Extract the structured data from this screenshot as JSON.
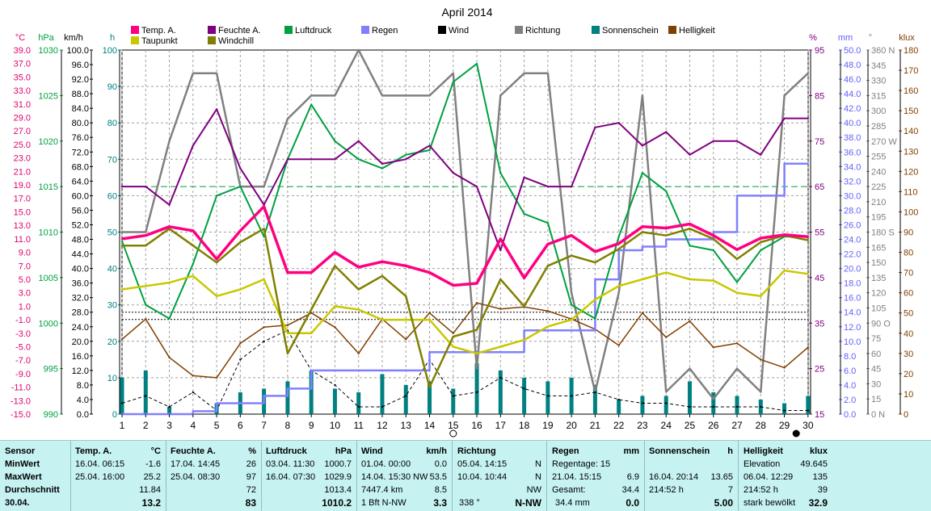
{
  "title": "April 2014",
  "legend": [
    {
      "name": "Temp. A.",
      "color": "#ff0080"
    },
    {
      "name": "Feuchte A.",
      "color": "#800080"
    },
    {
      "name": "Luftdruck",
      "color": "#00a040"
    },
    {
      "name": "Regen",
      "color": "#8080ff"
    },
    {
      "name": "Wind",
      "color": "#000000"
    },
    {
      "name": "Richtung",
      "color": "#808080"
    },
    {
      "name": "Sonnenschein",
      "color": "#008080"
    },
    {
      "name": "Helligkeit",
      "color": "#804000"
    },
    {
      "name": "Taupunkt",
      "color": "#c8c800"
    },
    {
      "name": "Windchill",
      "color": "#808000"
    }
  ],
  "axes": {
    "left_headers": {
      "temp": "°C",
      "pressure": "hPa",
      "wind": "km/h",
      "sun": "h"
    },
    "right_headers": {
      "humidity": "%",
      "rain": "mm",
      "direction": "°",
      "lux": "klux"
    },
    "temp_ticks": [
      "39.0",
      "37.0",
      "35.0",
      "33.0",
      "31.0",
      "29.0",
      "27.0",
      "25.0",
      "23.0",
      "21.0",
      "19.0",
      "17.0",
      "15.0",
      "13.0",
      "11.0",
      "9.0",
      "7.0",
      "5.0",
      "3.0",
      "1.0",
      "-1.0",
      "-3.0",
      "-5.0",
      "-7.0",
      "-9.0",
      "-11.0",
      "-13.0",
      "-15.0"
    ],
    "pressure_ticks": [
      "1030",
      "1025",
      "1020",
      "1015",
      "1010",
      "1005",
      "1000",
      "995",
      "990"
    ],
    "wind_ticks": [
      "100.0",
      "96.0",
      "92.0",
      "88.0",
      "84.0",
      "80.0",
      "76.0",
      "72.0",
      "68.0",
      "64.0",
      "60.0",
      "56.0",
      "52.0",
      "48.0",
      "44.0",
      "40.0",
      "36.0",
      "32.0",
      "28.0",
      "24.0",
      "20.0",
      "16.0",
      "12.0",
      "8.0",
      "4.0",
      "0.0"
    ],
    "sun_ticks": [
      "100",
      "90",
      "80",
      "70",
      "60",
      "50",
      "40",
      "30",
      "20",
      "10",
      "0"
    ],
    "humidity_ticks": [
      "95",
      "85",
      "75",
      "65",
      "55",
      "45",
      "35",
      "25",
      "15"
    ],
    "rain_ticks": [
      "50.0",
      "48.0",
      "46.0",
      "44.0",
      "42.0",
      "40.0",
      "38.0",
      "36.0",
      "34.0",
      "32.0",
      "30.0",
      "28.0",
      "26.0",
      "24.0",
      "22.0",
      "20.0",
      "18.0",
      "16.0",
      "14.0",
      "12.0",
      "10.0",
      "8.0",
      "6.0",
      "4.0",
      "2.0",
      "0.0"
    ],
    "dir_ticks": [
      "360 N",
      "345",
      "330",
      "315",
      "300",
      "285",
      "270 W",
      "255",
      "240",
      "225",
      "210",
      "195",
      "180 S",
      "165",
      "150",
      "135",
      "120",
      "105",
      "90 O",
      "75",
      "60",
      "45",
      "30",
      "15",
      "0 N"
    ],
    "lux_ticks": [
      "180",
      "170",
      "160",
      "150",
      "140",
      "130",
      "120",
      "110",
      "100",
      "90",
      "80",
      "70",
      "60",
      "50",
      "40",
      "30",
      "20",
      "10",
      "0"
    ],
    "x_ticks": [
      "1",
      "2",
      "3",
      "4",
      "5",
      "6",
      "7",
      "8",
      "9",
      "10",
      "11",
      "12",
      "13",
      "14",
      "15",
      "16",
      "17",
      "18",
      "19",
      "20",
      "21",
      "22",
      "23",
      "24",
      "25",
      "26",
      "27",
      "28",
      "29",
      "30"
    ]
  },
  "chart_data": {
    "type": "line",
    "title": "April 2014",
    "x": [
      1,
      2,
      3,
      4,
      5,
      6,
      7,
      8,
      9,
      10,
      11,
      12,
      13,
      14,
      15,
      16,
      17,
      18,
      19,
      20,
      21,
      22,
      23,
      24,
      25,
      26,
      27,
      28,
      29,
      30
    ],
    "grid": true,
    "series": [
      {
        "name": "Temp. A.",
        "unit": "°C",
        "values": [
          11.0,
          11.5,
          12.8,
          12.2,
          8.0,
          12.2,
          15.8,
          6.0,
          6.0,
          9.0,
          6.8,
          7.6,
          7.0,
          6.0,
          4.1,
          4.4,
          11.0,
          5.2,
          10.2,
          11.5,
          9.1,
          10.3,
          12.8,
          12.6,
          13.2,
          11.5,
          9.4,
          11.1,
          11.6,
          11.3
        ]
      },
      {
        "name": "Feuchte A.",
        "unit": "%",
        "values": [
          65,
          65,
          61,
          74,
          82,
          69,
          61,
          71,
          71,
          71,
          75,
          70,
          71,
          74,
          68,
          65,
          51,
          67,
          65,
          65,
          78,
          79,
          74,
          77,
          72,
          75,
          75,
          72,
          80,
          80
        ]
      },
      {
        "name": "Luftdruck",
        "unit": "hPa",
        "values": [
          1009,
          1002,
          1000.5,
          1006.5,
          1014,
          1015,
          1009.5,
          1018,
          1024,
          1020,
          1018,
          1017,
          1018.5,
          1019,
          1026.5,
          1028.5,
          1016.5,
          1012,
          1011,
          1002,
          1000.5,
          1009.5,
          1016.5,
          1014.5,
          1008.5,
          1008,
          1004.5,
          1008,
          1009.5,
          1009.5
        ]
      },
      {
        "name": "Regen",
        "unit": "mm",
        "values": [
          0,
          0,
          0,
          0.4,
          1.5,
          1.5,
          2.5,
          3.5,
          6.0,
          6.0,
          6.0,
          6.0,
          6.0,
          8.5,
          8.5,
          8.5,
          8.5,
          11.5,
          11.5,
          11.5,
          18.5,
          22.5,
          23.0,
          24.0,
          24.0,
          25.0,
          30.0,
          30.0,
          34.4,
          34.4
        ]
      },
      {
        "name": "Wind",
        "unit": "km/h",
        "values": [
          3,
          5,
          2,
          6,
          1,
          15,
          20,
          23,
          12,
          8,
          2,
          2,
          5,
          15,
          5,
          6,
          10,
          7,
          5,
          5,
          6,
          4,
          3,
          3,
          2,
          2,
          2,
          2,
          1,
          1
        ]
      },
      {
        "name": "Richtung",
        "unit": "°",
        "values": [
          180,
          180,
          270,
          337,
          337,
          225,
          225,
          292,
          315,
          315,
          360,
          315,
          315,
          315,
          337,
          45,
          315,
          337,
          337,
          120,
          22,
          120,
          315,
          22,
          45,
          15,
          45,
          22,
          315,
          337
        ]
      },
      {
        "name": "Sonnenschein",
        "unit": "h",
        "values": [
          10,
          12,
          2,
          0,
          3,
          6,
          7,
          9,
          12,
          7,
          6,
          11,
          8,
          9,
          7,
          14,
          12,
          10,
          9,
          10,
          8,
          4,
          5,
          5,
          9,
          6,
          5,
          4,
          3,
          5
        ]
      },
      {
        "name": "Helligkeit",
        "unit": "klux",
        "values": [
          37,
          47,
          28,
          19,
          18,
          35,
          43,
          44,
          50,
          43,
          30,
          47,
          37,
          50,
          40,
          55,
          52,
          53,
          51,
          47,
          42,
          34,
          50,
          38,
          46,
          33,
          35,
          27,
          23,
          33
        ]
      },
      {
        "name": "Taupunkt",
        "unit": "°C",
        "values": [
          3.5,
          4.0,
          4.5,
          5.5,
          2.5,
          3.5,
          5.0,
          -3.0,
          -3.0,
          1.0,
          0.5,
          -1.0,
          -1.0,
          -1.0,
          -5.0,
          -6.0,
          -5.0,
          -4.0,
          -2.0,
          -1.0,
          2.0,
          4.0,
          5.0,
          6.0,
          5.0,
          4.8,
          3.0,
          2.5,
          6.3,
          5.8
        ]
      },
      {
        "name": "Windchill",
        "unit": "°C",
        "values": [
          10.0,
          10.0,
          12.5,
          10.0,
          7.5,
          10.5,
          12.5,
          -6.0,
          0.5,
          7.0,
          3.5,
          5.5,
          2.5,
          -11.0,
          -3.5,
          -2.5,
          5.0,
          1.0,
          7.0,
          8.5,
          7.5,
          9.5,
          12.0,
          11.5,
          12.5,
          11.0,
          8.0,
          10.5,
          11.5,
          10.8
        ]
      }
    ],
    "reference_lines": [
      {
        "series": "Feuchte A.",
        "value": 65,
        "style": "dashed",
        "color": "#00a040"
      },
      {
        "series": "Wind",
        "value": 26,
        "style": "dotted",
        "color": "#000000"
      },
      {
        "series": "Wind",
        "value": 28,
        "style": "dotted",
        "color": "#000000"
      }
    ],
    "markers": [
      {
        "day": 15,
        "symbol": "open-circle"
      },
      {
        "day": 29.5,
        "symbol": "filled-circle"
      }
    ]
  },
  "stats": {
    "sensor": {
      "label": "Sensor",
      "rows": [
        "MinWert",
        "MaxWert",
        "Durchschnitt",
        "30.04."
      ]
    },
    "temp": {
      "label": "Temp. A.",
      "unit": "°C",
      "min_time": "16.04.  06:15",
      "min_val": "-1.6",
      "max_time": "25.04.  16:00",
      "max_val": "25.2",
      "avg": "11.84",
      "current": "13.2"
    },
    "hum": {
      "label": "Feuchte A.",
      "unit": "%",
      "min_time": "17.04.  14:45",
      "min_val": "26",
      "max_time": "25.04.  08:30",
      "max_val": "97",
      "avg": "72",
      "current": "83"
    },
    "press": {
      "label": "Luftdruck",
      "unit": "hPa",
      "min_time": "03.04.  11:30",
      "min_val": "1000.7",
      "max_time": "16.04.  07:30",
      "max_val": "1029.9",
      "avg": "1013.4",
      "current": "1010.2"
    },
    "wind": {
      "label": "Wind",
      "unit": "km/h",
      "min_time": "01.04.  00:00",
      "min_val": "0.0",
      "max_time": "14.04.  15:30",
      "max_dir": "NW",
      "max_val": "53.5",
      "total": "7447.4 km",
      "avg": "8.5",
      "cur_bft": "1 Bft N-NW",
      "current": "3.3"
    },
    "dir": {
      "label": "Richtung",
      "min_time": "05.04.  14:15",
      "min_val": "N",
      "max_time": "10.04.  10:44",
      "max_val": "N",
      "avg": "NW",
      "cur_deg": "338 °",
      "current": "N-NW"
    },
    "rain": {
      "label": "Regen",
      "unit": "mm",
      "days": "Regentage: 15",
      "max_time": "21.04.  15:15",
      "max_val": "6.9",
      "total_label": "Gesamt:",
      "total": "34.4",
      "cur_total": "34.4 mm",
      "current": "0.0"
    },
    "sun": {
      "label": "Sonnenschein",
      "unit": "h",
      "max_time": "16.04.  20:14",
      "max_val": "13.65",
      "sum_h": "214:52 h",
      "avg": "7",
      "current": "5.00"
    },
    "lux": {
      "label": "Helligkeit",
      "unit": "klux",
      "elev_label": "Elevation",
      "elev": "49.645",
      "max_time": "06.04.  12:29",
      "max_val": "135",
      "sum_h": "214:52 h",
      "avg": "39",
      "cur_label": "stark bewölkt",
      "current": "32.9"
    }
  }
}
